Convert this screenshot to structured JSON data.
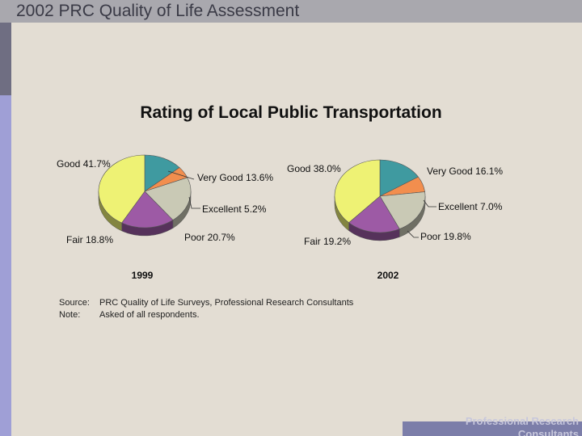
{
  "header": {
    "title": "2002 PRC Quality of Life Assessment"
  },
  "footer": {
    "brand": "Professional Research Consultants"
  },
  "chart_data": [
    {
      "type": "pie",
      "title": "Rating of Local Public Transportation",
      "year_label": "1999",
      "slices": [
        {
          "label": "Good",
          "value": 41.7,
          "display": "41.7%",
          "color": "#eef274"
        },
        {
          "label": "Very Good",
          "value": 13.6,
          "display": "13.6%",
          "color": "#3f9aa0"
        },
        {
          "label": "Excellent",
          "value": 5.2,
          "display": "5.2%",
          "color": "#f28e4e"
        },
        {
          "label": "Poor",
          "value": 20.7,
          "display": "20.7%",
          "color": "#c9c9b5"
        },
        {
          "label": "Fair",
          "value": 18.8,
          "display": "18.8%",
          "color": "#9d5aa5"
        }
      ]
    },
    {
      "type": "pie",
      "title": "Rating of Local Public Transportation",
      "year_label": "2002",
      "slices": [
        {
          "label": "Good",
          "value": 38.0,
          "display": "38.0%",
          "color": "#eef274"
        },
        {
          "label": "Very Good",
          "value": 16.1,
          "display": "16.1%",
          "color": "#3f9aa0"
        },
        {
          "label": "Excellent",
          "value": 7.0,
          "display": "7.0%",
          "color": "#f28e4e"
        },
        {
          "label": "Poor",
          "value": 19.8,
          "display": "19.8%",
          "color": "#c9c9b5"
        },
        {
          "label": "Fair",
          "value": 19.2,
          "display": "19.2%",
          "color": "#9d5aa5"
        }
      ]
    }
  ],
  "notes": {
    "source_label": "Source:",
    "source_text": "PRC Quality of Life Surveys, Professional Research Consultants",
    "note_label": "Note:",
    "note_text": "Asked of all respondents."
  }
}
